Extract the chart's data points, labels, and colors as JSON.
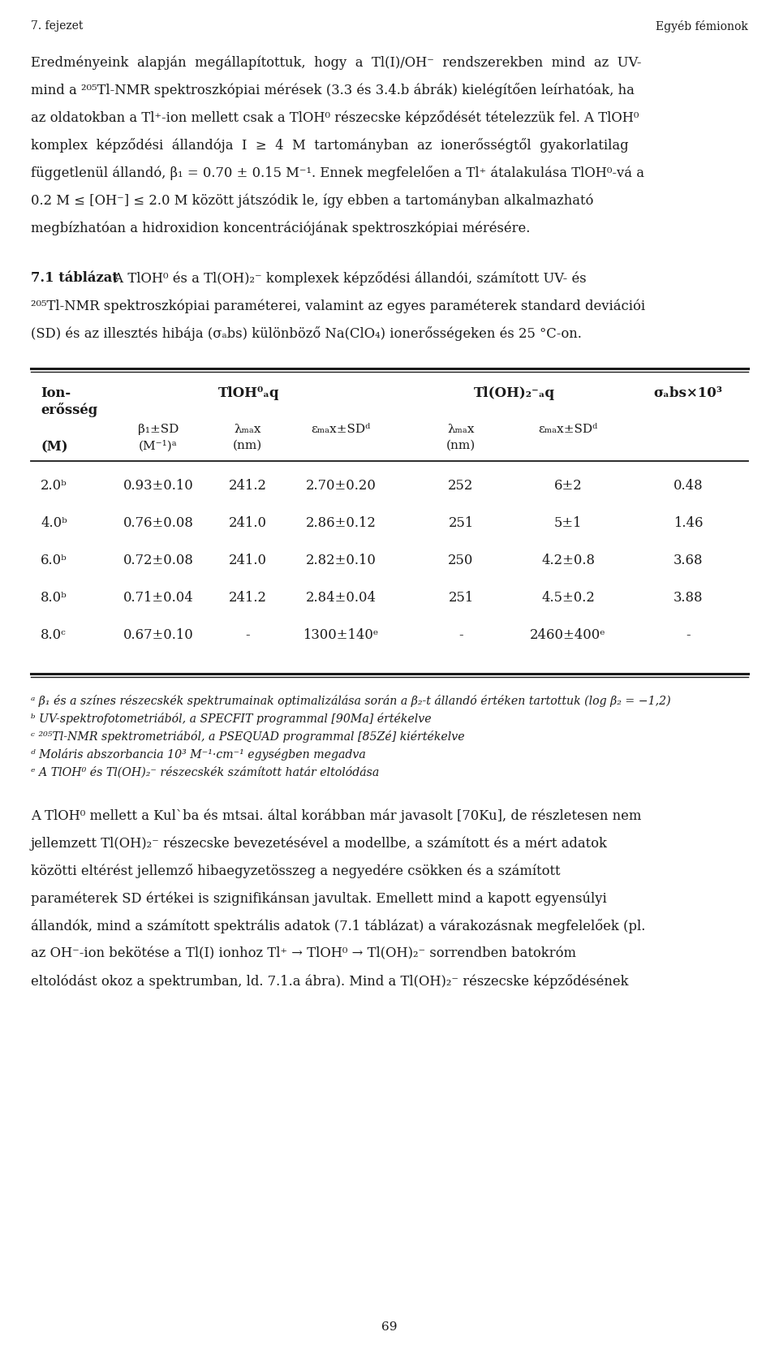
{
  "page_header_left": "7. fejezet",
  "page_header_right": "Egyéb fémionok",
  "bg_color": "#ffffff",
  "text_color": "#1a1a1a",
  "para1_lines": [
    "Eredményeink  alapján  megállapítottuk,  hogy  a  Tl(I)/OH⁻  rendszerekben  mind  az  UV-",
    "mind a ²⁰⁵Tl-NMR spektroszkópiai mérések (3.3 és 3.4.b ábrák) kielégítően leírhatóak, ha",
    "az oldatokban a Tl⁺-ion mellett csak a TlOH⁰ részecske képződését tételezzük fel. A TlOH⁰",
    "komplex  képződési  állandója  I  ≥  4  M  tartományban  az  ionerősségtől  gyakorlatilag",
    "függetlenül állandó, β₁ = 0.70 ± 0.15 M⁻¹. Ennek megfelelően a Tl⁺ átalakulása TlOH⁰-vá a",
    "0.2 M ≤ [OH⁻] ≤ 2.0 M között játszódik le, így ebben a tartományban alkalmazható",
    "megbízhatóan a hidroxidion koncentrációjának spektroszkópiai mérésére."
  ],
  "caption_bold": "7.1 táblázat",
  "caption_line1_rest": " A TlOH⁰ és a Tl(OH)₂⁻ komplexek képződési állandói, számított UV- és",
  "caption_line2": "²⁰⁵Tl-NMR spektroszkópiai paraméterei, valamint az egyes paraméterek standard deviációi",
  "caption_line3": "(SD) és az illesztés hibája (σₐbs) különböző Na(ClO₄) ionerősségeken és 25 °C-on.",
  "rows": [
    [
      "2.0ᵇ",
      "0.93±0.10",
      "241.2",
      "2.70±0.20",
      "252",
      "6±2",
      "0.48"
    ],
    [
      "4.0ᵇ",
      "0.76±0.08",
      "241.0",
      "2.86±0.12",
      "251",
      "5±1",
      "1.46"
    ],
    [
      "6.0ᵇ",
      "0.72±0.08",
      "241.0",
      "2.82±0.10",
      "250",
      "4.2±0.8",
      "3.68"
    ],
    [
      "8.0ᵇ",
      "0.71±0.04",
      "241.2",
      "2.84±0.04",
      "251",
      "4.5±0.2",
      "3.88"
    ],
    [
      "8.0ᶜ",
      "0.67±0.10",
      "-",
      "1300±140ᵉ",
      "-",
      "2460±400ᵉ",
      "-"
    ]
  ],
  "footnote_lines": [
    "ᵃ β₁ és a színes részecskék spektrumainak optimalizálása során a β₂-t állandó értéken tartottuk (log β₂ = −1,2)",
    "ᵇ UV-spektrofotometriából, a SPECFIT programmal [90Ma] értékelve",
    "ᶜ ²⁰⁵Tl-NMR spektrometriából, a PSEQUAD programmal [85Zé] kiértékelve",
    "ᵈ Moláris abszorbancia 10³ M⁻¹·cm⁻¹ egységben megadva",
    "ᵉ A TlOH⁰ és Tl(OH)₂⁻ részecskék számított határ eltolódása"
  ],
  "para2_lines": [
    "A TlOH⁰ mellett a Kul`ba és mtsai. által korábban már javasolt [70Ku], de részletesen nem",
    "jellemzett Tl(OH)₂⁻ részecske bevezetésével a modellbe, a számított és a mért adatok",
    "közötti eltérést jellemző hibaegyzetösszeg a negyedére csökken és a számított",
    "paraméterek SD értékei is szignifikánsan javultak. Emellett mind a kapott egyensúlyi",
    "állandók, mind a számított spektrális adatok (7.1 táblázat) a várakozásnak megfelelőek (pl.",
    "az OH⁻-ion bekötése a Tl(I) ionhoz Tl⁺ → TlOH⁰ → Tl(OH)₂⁻ sorrendben batokróm",
    "eltolódást okoz a spektrumban, ld. 7.1.a ábra). Mind a Tl(OH)₂⁻ részecske képződésének"
  ],
  "page_number": "69"
}
